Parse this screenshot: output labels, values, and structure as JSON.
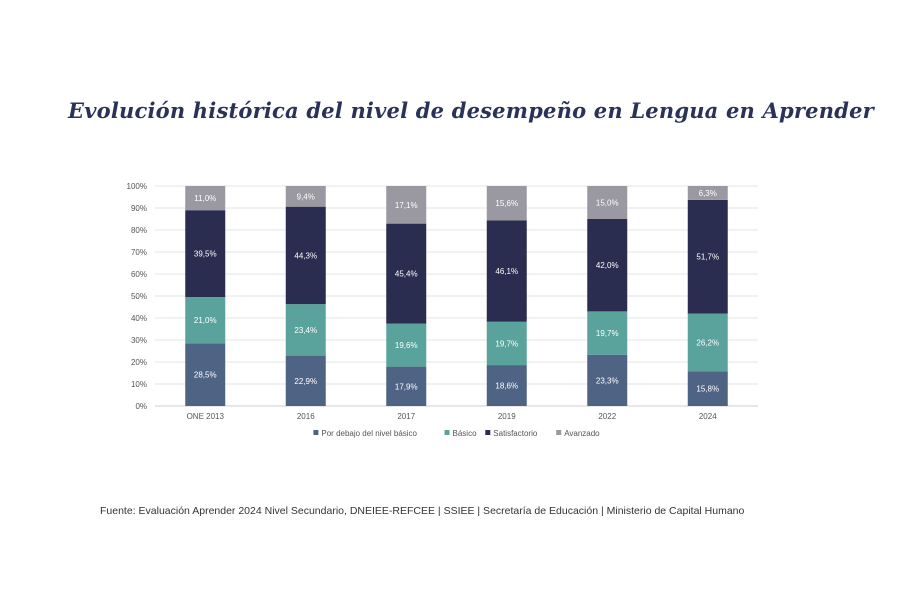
{
  "title": "Evolución histórica del nivel de desempeño en Lengua en Aprender",
  "source": "Fuente: Evaluación Aprender 2024 Nivel Secundario, DNEIEE-REFCEE | SSIEE | Secretaría de Educación | Ministerio de Capital Humano",
  "chart_data": {
    "type": "bar",
    "stacked": true,
    "title": "",
    "xlabel": "",
    "ylabel": "",
    "ylim": [
      0,
      100
    ],
    "y_ticks": [
      "0%",
      "10%",
      "20%",
      "30%",
      "40%",
      "50%",
      "60%",
      "70%",
      "80%",
      "90%",
      "100%"
    ],
    "grid": true,
    "legend_position": "bottom",
    "categories": [
      "ONE 2013",
      "2016",
      "2017",
      "2019",
      "2022",
      "2024"
    ],
    "series": [
      {
        "name": "Por debajo del nivel básico",
        "color": "#4f6384",
        "values": [
          28.5,
          22.9,
          17.9,
          18.6,
          23.3,
          15.8
        ],
        "labels": [
          "28,5%",
          "22,9%",
          "17,9%",
          "18,6%",
          "23,3%",
          "15,8%"
        ]
      },
      {
        "name": "Básico",
        "color": "#5aa39c",
        "values": [
          21.0,
          23.4,
          19.6,
          19.7,
          19.7,
          26.2
        ],
        "labels": [
          "21,0%",
          "23,4%",
          "19,6%",
          "19,7%",
          "19,7%",
          "26,2%"
        ]
      },
      {
        "name": "Satisfactorio",
        "color": "#2a2d4f",
        "values": [
          39.5,
          44.3,
          45.4,
          46.1,
          42.0,
          51.7
        ],
        "labels": [
          "39,5%",
          "44,3%",
          "45,4%",
          "46,1%",
          "42,0%",
          "51,7%"
        ]
      },
      {
        "name": "Avanzado",
        "color": "#9a98a0",
        "values": [
          11.0,
          9.4,
          17.1,
          15.6,
          15.0,
          6.3
        ],
        "labels": [
          "11,0%",
          "9,4%",
          "17,1%",
          "15,6%",
          "15,0%",
          "6,3%"
        ]
      }
    ]
  }
}
